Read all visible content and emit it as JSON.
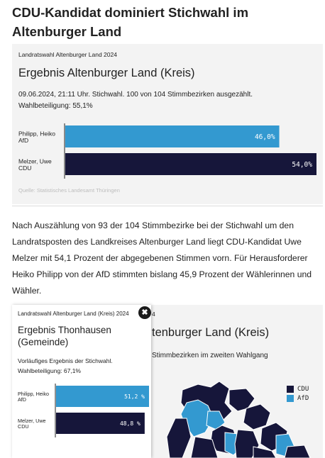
{
  "headline": "CDU-Kandidat dominiert Stichwahl im Altenburger Land",
  "card1": {
    "kicker": "Landratswahl Altenburger Land 2024",
    "title": "Ergebnis Altenburger Land (Kreis)",
    "meta_line1": "09.06.2024, 21:11 Uhr. Stichwahl. 100 von 104 Stimmbezirken ausgezählt.",
    "meta_line2": "Wahlbeteiligung: 55,1%",
    "source": "Quelle: Statistisches Landesamt Thüringen"
  },
  "article": "Nach Auszählung von 93 der 104 Stimmbezirke bei der Stichwahl um den Landratsposten des Landkreises Altenburger Land liegt CDU-Kandidat Uwe Melzer mit 54,1 Prozent der abgegebenen Stimmen vorn. Für Herausforderer Heiko Philipp von der AfD stimmten bislang 45,9 Prozent der Wählerinnen und Wähler.",
  "card2_background": {
    "year_fragment": "4",
    "title_fragment": "tenburger Land (Kreis)",
    "sub_fragment": "Stimmbezirken im zweiten Wahlgang"
  },
  "legend": [
    {
      "label": "CDU",
      "color": "#16163a"
    },
    {
      "label": "AfD",
      "color": "#3399d0"
    }
  ],
  "popup": {
    "kicker": "Landratswahl Altenburger Land (Kreis) 2024",
    "title": "Ergebnis Thonhausen (Gemeinde)",
    "meta_line1": "Vorläufiges Ergebnis der Stichwahl.",
    "meta_line2": "Wahlbeteiligung: 67,1%",
    "close_icon": "close-icon"
  },
  "colors": {
    "afd": "#3399d0",
    "cdu": "#16163a",
    "bg": "#f3f3f3"
  },
  "chart_data": [
    {
      "type": "bar",
      "categories": [
        "Philipp, Heiko AfD",
        "Melzer, Uwe CDU"
      ],
      "cat_line1": [
        "Philipp, Heiko",
        "Melzer, Uwe"
      ],
      "cat_line2": [
        "AfD",
        "CDU"
      ],
      "values": [
        46.0,
        54.0
      ],
      "labels": [
        "46,0%",
        "54,0%"
      ],
      "colors": [
        "#3399d0",
        "#16163a"
      ],
      "xlim": [
        0,
        54.0
      ]
    },
    {
      "type": "bar",
      "categories": [
        "Philipp, Heiko AfD",
        "Melzer, Uwe CDU"
      ],
      "cat_line1": [
        "Philipp, Heiko",
        "Melzer, Uwe"
      ],
      "cat_line2": [
        "AfD",
        "CDU"
      ],
      "values": [
        51.2,
        48.8
      ],
      "labels": [
        "51,2 %",
        "48,8 %"
      ],
      "colors": [
        "#3399d0",
        "#16163a"
      ],
      "xlim": [
        0,
        51.2
      ]
    }
  ]
}
